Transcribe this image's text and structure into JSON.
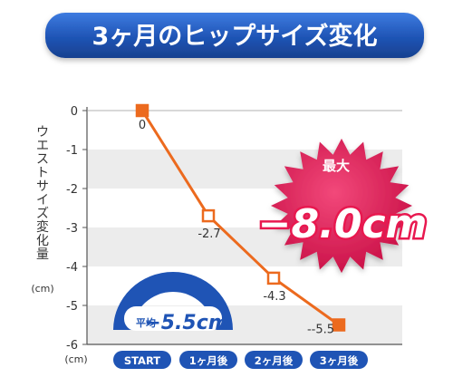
{
  "chart_data": {
    "type": "line",
    "title": "3ヶ月のヒップサイズ変化",
    "ylabel": "ウエストサイズ変化量",
    "yunit": "(cm)",
    "xunit": "(cm)",
    "categories": [
      "START",
      "1ヶ月後",
      "2ヶ月後",
      "3ヶ月後"
    ],
    "values": [
      0,
      -2.7,
      -4.3,
      -5.5
    ],
    "value_labels": [
      "0",
      "-2.7",
      "-4.3",
      "--5.5"
    ],
    "ylim": [
      -6,
      0
    ],
    "yticks": [
      0,
      -1,
      -2,
      -3,
      -4,
      -5,
      -6
    ],
    "grid": "alternating horizontal bands",
    "series_color": "#ec6a1e"
  },
  "badges": {
    "max_label": "最大",
    "max_value": "−8.0cm",
    "avg_label": "平均",
    "avg_value": "−5.5cm"
  },
  "colors": {
    "title_bar": "#1f54b5",
    "band": "#ececec",
    "axis_pill": "#1f54b5",
    "burst": "#d6154f",
    "max_text": "#e8184f",
    "avg_arc": "#1f54b5"
  }
}
